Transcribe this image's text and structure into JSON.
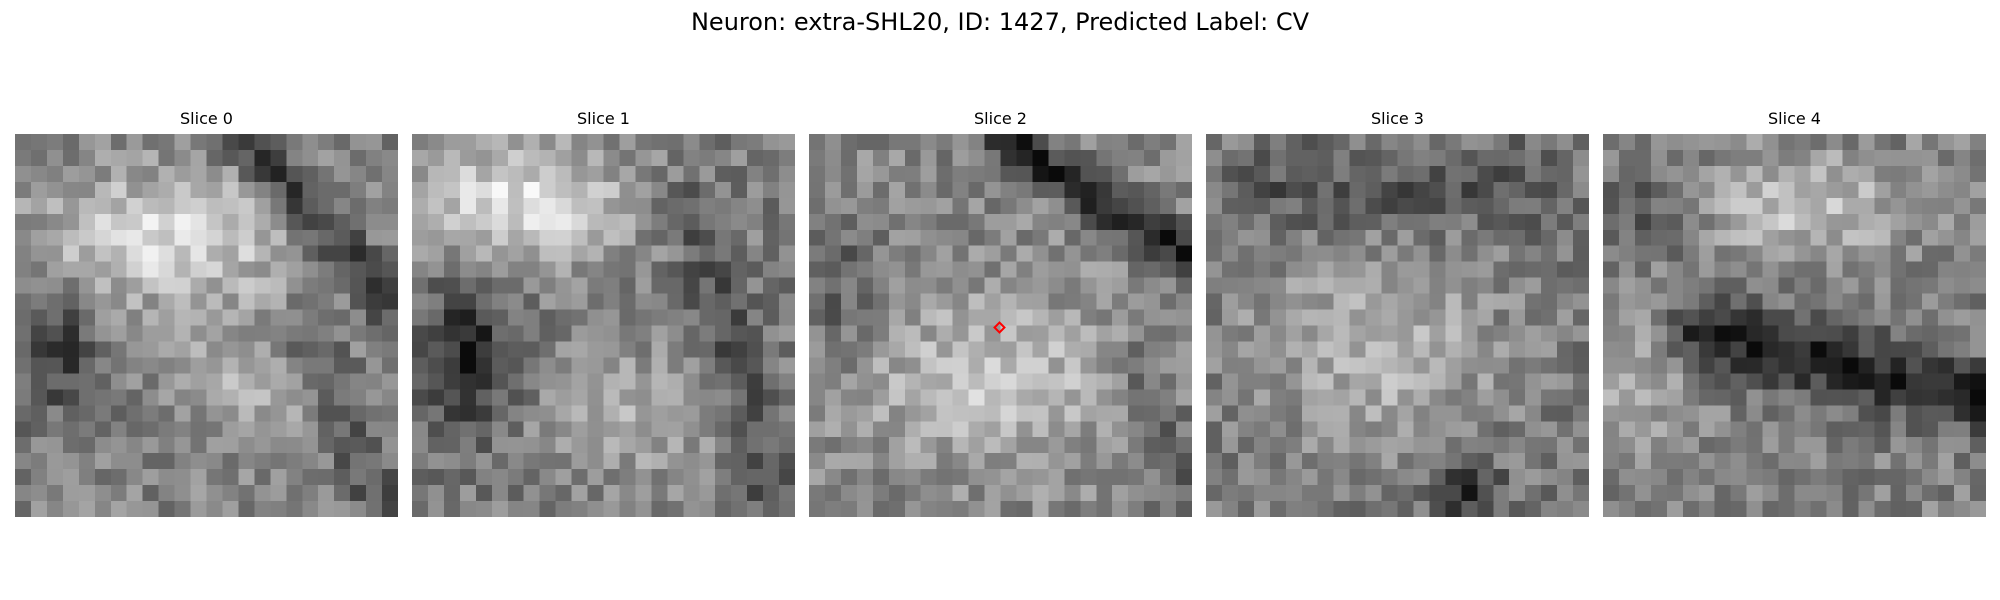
{
  "figure": {
    "title": "Neuron: extra-SHL20, ID: 1427, Predicted Label: CV"
  },
  "panels": [
    {
      "title": "Slice 0",
      "grid": 24,
      "pattern": "cell-upper-left-dark-band-right",
      "seed": 11
    },
    {
      "title": "Slice 1",
      "grid": 24,
      "pattern": "bright-upper-left-dark-left-mid",
      "seed": 23
    },
    {
      "title": "Slice 2",
      "grid": 24,
      "pattern": "dark-diagonal-top-right-bright-bottom",
      "seed": 37,
      "has_marker": true
    },
    {
      "title": "Slice 3",
      "grid": 24,
      "pattern": "mottled-bright-center",
      "seed": 41
    },
    {
      "title": "Slice 4",
      "grid": 24,
      "pattern": "bright-top-dark-mid-band",
      "seed": 59
    }
  ],
  "marker": {
    "color": "#ff0000",
    "shape": "diamond",
    "panel_index": 2
  },
  "colormap": "gray"
}
